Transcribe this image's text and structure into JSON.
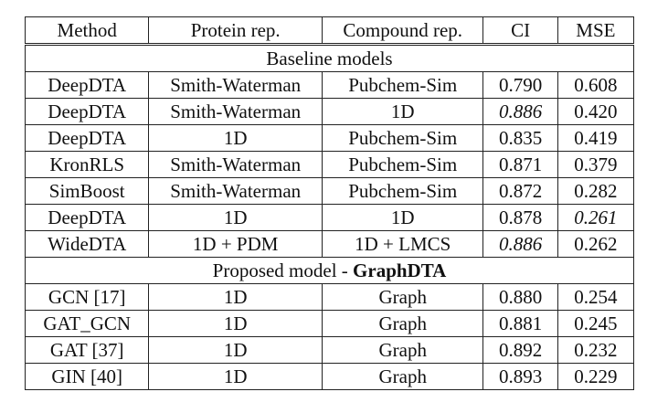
{
  "table": {
    "headers": [
      "Method",
      "Protein rep.",
      "Compound rep.",
      "CI",
      "MSE"
    ],
    "sections": [
      {
        "title": "Baseline models",
        "title_suffix": "",
        "rows": [
          {
            "method": "DeepDTA",
            "protein": "Smith-Waterman",
            "compound": "Pubchem-Sim",
            "ci": "0.790",
            "mse": "0.608"
          },
          {
            "method": "DeepDTA",
            "protein": "Smith-Waterman",
            "compound": "1D",
            "ci": "0.886",
            "mse": "0.420"
          },
          {
            "method": "DeepDTA",
            "protein": "1D",
            "compound": "Pubchem-Sim",
            "ci": "0.835",
            "mse": "0.419"
          },
          {
            "method": "KronRLS",
            "protein": "Smith-Waterman",
            "compound": "Pubchem-Sim",
            "ci": "0.871",
            "mse": "0.379"
          },
          {
            "method": "SimBoost",
            "protein": "Smith-Waterman",
            "compound": "Pubchem-Sim",
            "ci": "0.872",
            "mse": "0.282"
          },
          {
            "method": "DeepDTA",
            "protein": "1D",
            "compound": "1D",
            "ci": "0.878",
            "mse": "0.261"
          },
          {
            "method": "WideDTA",
            "protein": "1D + PDM",
            "compound": "1D + LMCS",
            "ci": "0.886",
            "mse": "0.262"
          }
        ]
      },
      {
        "title": "Proposed model - ",
        "title_suffix": "GraphDTA",
        "rows": [
          {
            "method": "GCN [17]",
            "protein": "1D",
            "compound": "Graph",
            "ci": "0.880",
            "mse": "0.254"
          },
          {
            "method": "GAT_GCN",
            "protein": "1D",
            "compound": "Graph",
            "ci": "0.881",
            "mse": "0.245"
          },
          {
            "method": "GAT [37]",
            "protein": "1D",
            "compound": "Graph",
            "ci": "0.892",
            "mse": "0.232"
          },
          {
            "method": "GIN [40]",
            "protein": "1D",
            "compound": "Graph",
            "ci": "0.893",
            "mse": "0.229"
          }
        ]
      }
    ]
  }
}
